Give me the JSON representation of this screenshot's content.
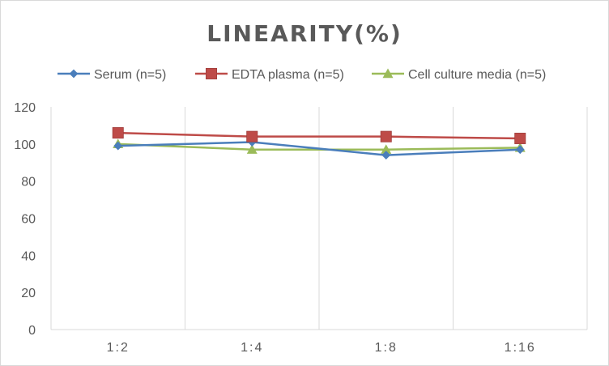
{
  "chart_data": {
    "type": "line",
    "title": "LINEARITY(%)",
    "xlabel": "",
    "ylabel": "",
    "categories": [
      "1:2",
      "1:4",
      "1:8",
      "1:16"
    ],
    "ylim": [
      0,
      120
    ],
    "yticks": [
      0,
      20,
      40,
      60,
      80,
      100,
      120
    ],
    "grid": "vertical",
    "legend_position": "top",
    "series": [
      {
        "name": "Serum (n=5)",
        "values": [
          99,
          101,
          94,
          97
        ],
        "color": "#4a7ebb",
        "marker": "diamond"
      },
      {
        "name": "EDTA plasma (n=5)",
        "values": [
          106,
          104,
          104,
          103
        ],
        "color": "#be4b48",
        "marker": "square"
      },
      {
        "name": "Cell culture media (n=5)",
        "values": [
          100,
          97,
          97,
          98
        ],
        "color": "#9bbb59",
        "marker": "triangle"
      }
    ]
  }
}
